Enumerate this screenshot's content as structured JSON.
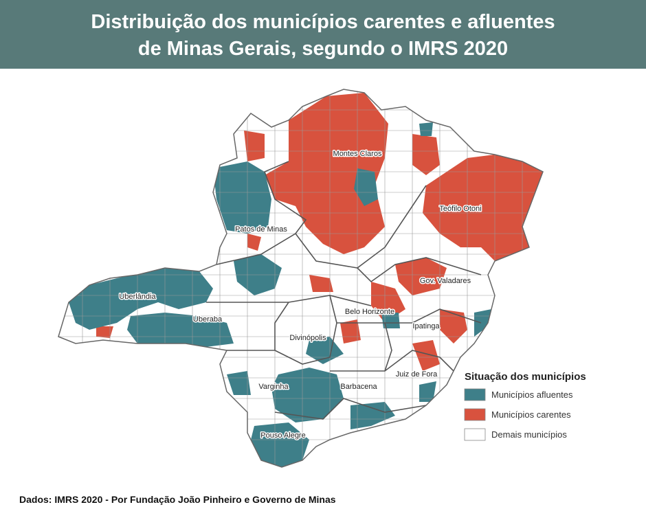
{
  "header": {
    "title_lines": [
      "Distribuição dos municípios carentes e afluentes",
      "de Minas Gerais, segundo o IMRS 2020"
    ]
  },
  "map": {
    "region_labels": [
      "Montes Claros",
      "Teófilo Otoni",
      "Patos de Minas",
      "Gov. Valadares",
      "Uberlândia",
      "Belo Horizonte",
      "Uberaba",
      "Ipatinga",
      "Divinópolis",
      "Juiz de Fora",
      "Varginha",
      "Barbacena",
      "Pouso Alegre"
    ]
  },
  "legend": {
    "title": "Situação dos municípios",
    "items": [
      {
        "label": "Municípios afluentes",
        "color": "#3e7f89"
      },
      {
        "label": "Municípios carentes",
        "color": "#d8523e"
      },
      {
        "label": "Demais municípios",
        "color": "#ffffff"
      }
    ]
  },
  "footer": {
    "source": "Dados: IMRS 2020 - Por Fundação João Pinheiro e Governo de Minas"
  }
}
